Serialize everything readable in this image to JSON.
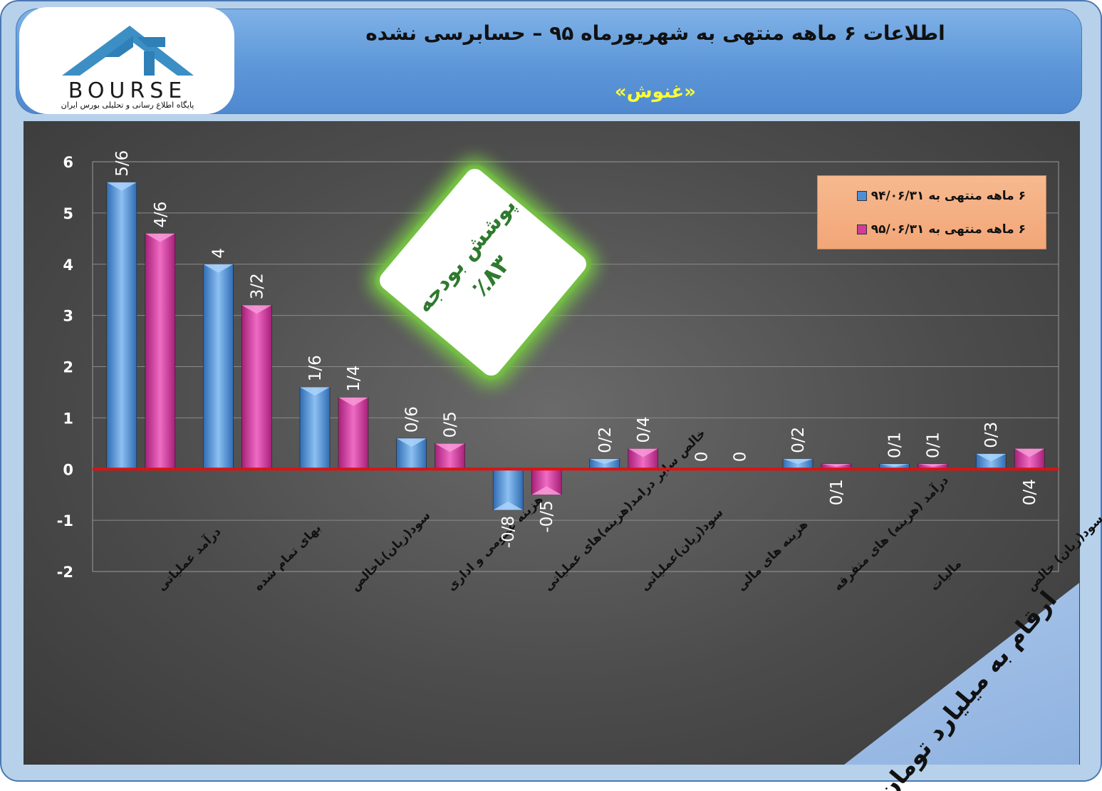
{
  "header": {
    "title": "اطلاعات ۶  ماهه منتهی به شهریورماه ۹۵ – حسابرسی نشده",
    "company": "«غنوش»"
  },
  "logo": {
    "name": "BOURSE",
    "subtitle": "پایگاه اطلاع رسانی و تحلیلی بورس ایران",
    "icon": "24-logo-icon"
  },
  "badge": {
    "label": "پوشش بودجه",
    "value": "٪۸۳"
  },
  "unit_note": "ارقام به میلیارد تومان",
  "colors": {
    "series1": "#4d8fd6",
    "series2": "#d23a9c",
    "zero_line": "#e01010",
    "legend_bg": "#f4ad80"
  },
  "chart_data": {
    "type": "bar",
    "categories": [
      "درآمد عملیاتی",
      "بهای تمام شده",
      "سود(زیان)ناخالص",
      "هزینه عمومی و اداری",
      "خالص سایر درامد(هزینه)های عملیاتی",
      "سود(زیان)عملیاتی",
      "هزینه های مالی",
      "درآمد (هزینه) های متفرقه",
      "مالیات",
      "سود(زیان) خالص"
    ],
    "series": [
      {
        "name": "۶ ماهه منتهی به ۹۴/۰۶/۳۱",
        "values": [
          5.6,
          4,
          1.6,
          0.6,
          -0.8,
          0.2,
          0,
          0.2,
          0.1,
          0.3
        ],
        "labels": [
          "5/6",
          "4",
          "1/6",
          "0/6",
          "-0/8",
          "0/2",
          "0",
          "0/2",
          "0/1",
          "0/3"
        ]
      },
      {
        "name": "۶ ماهه منتهی به ۹۵/۰۶/۳۱",
        "values": [
          4.6,
          3.2,
          1.4,
          0.5,
          -0.5,
          0.4,
          0,
          0.1,
          0.1,
          0.4
        ],
        "labels": [
          "4/6",
          "3/2",
          "1/4",
          "0/5",
          "-0/5",
          "0/4",
          "0",
          "0/1",
          "0/1",
          "0/4"
        ]
      }
    ],
    "ylim": [
      -2,
      6
    ],
    "yticks": [
      "-2",
      "-1",
      "0",
      "1",
      "2",
      "3",
      "4",
      "5",
      "6"
    ],
    "grid": true,
    "legend": "top-right"
  }
}
